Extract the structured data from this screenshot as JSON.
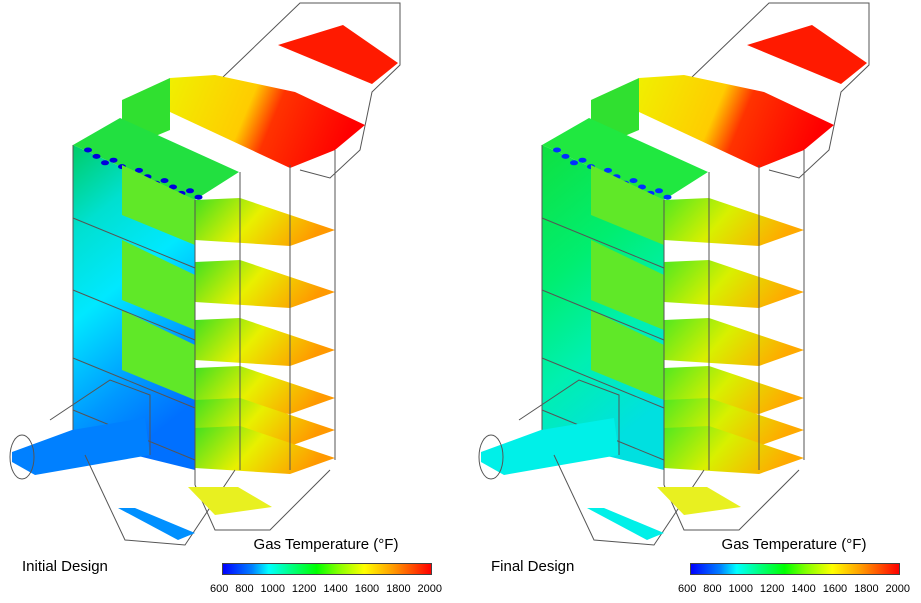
{
  "panels": [
    {
      "label": "Initial Design",
      "palette": "initial"
    },
    {
      "label": "Final Design",
      "palette": "final"
    }
  ],
  "colorbar": {
    "title": "Gas Temperature (°F)",
    "unit_superscript": "o",
    "ticks": [
      "600",
      "800",
      "1000",
      "1200",
      "1400",
      "1600",
      "1800",
      "2000"
    ],
    "min": 600,
    "max": 2000,
    "colors": [
      "#0000ff",
      "#00ffff",
      "#00ff00",
      "#ffff00",
      "#ff0000"
    ]
  }
}
